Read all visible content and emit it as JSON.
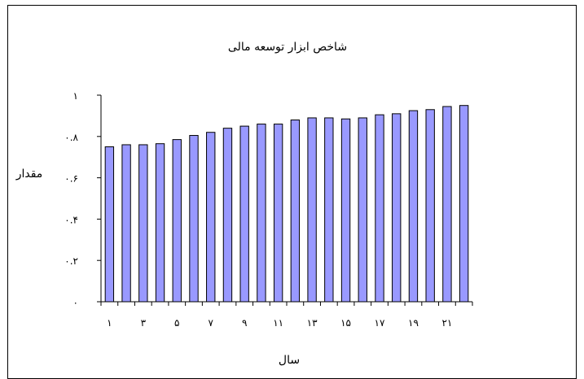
{
  "chart_data": {
    "type": "bar",
    "title": "شاخص ابزار توسعه مالی",
    "xlabel": "سال",
    "ylabel": "مقدار",
    "ylim": [
      0,
      1
    ],
    "yticks": [
      {
        "value": 0,
        "label": "۰"
      },
      {
        "value": 0.2,
        "label": "۰.۲"
      },
      {
        "value": 0.4,
        "label": "۰.۴"
      },
      {
        "value": 0.6,
        "label": "۰.۶"
      },
      {
        "value": 0.8,
        "label": "۰.۸"
      },
      {
        "value": 1,
        "label": "۱"
      }
    ],
    "categories": [
      "۱",
      "۲",
      "۳",
      "۴",
      "۵",
      "۶",
      "۷",
      "۸",
      "۹",
      "۱۰",
      "۱۱",
      "۱۲",
      "۱۳",
      "۱۴",
      "۱۵",
      "۱۶",
      "۱۷",
      "۱۸",
      "۱۹",
      "۲۰",
      "۲۱",
      "۲۲"
    ],
    "xtick_labels_shown": [
      "۱",
      "",
      "۳",
      "",
      "۵",
      "",
      "۷",
      "",
      "۹",
      "",
      "۱۱",
      "",
      "۱۳",
      "",
      "۱۵",
      "",
      "۱۷",
      "",
      "۱۹",
      "",
      "۲۱",
      ""
    ],
    "values": [
      0.75,
      0.76,
      0.76,
      0.765,
      0.785,
      0.805,
      0.82,
      0.84,
      0.85,
      0.86,
      0.86,
      0.88,
      0.89,
      0.89,
      0.885,
      0.89,
      0.905,
      0.91,
      0.925,
      0.93,
      0.945,
      0.95
    ],
    "bar_color": "#9999ff",
    "bar_stroke": "#000000",
    "grid": false,
    "legend": "none"
  }
}
